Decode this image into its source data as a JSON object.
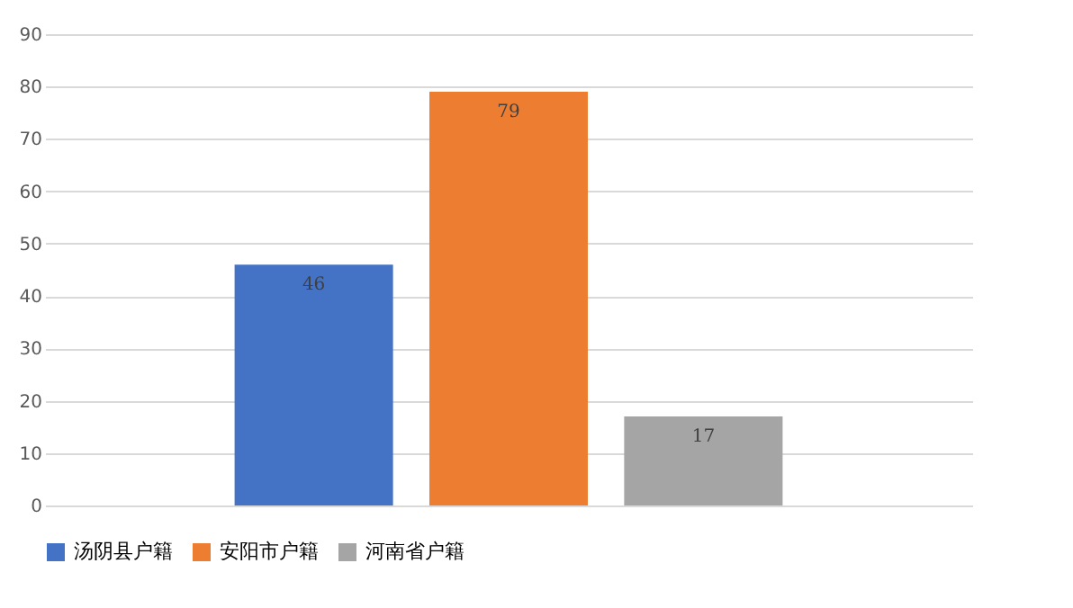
{
  "chart_data": {
    "type": "bar",
    "categories": [
      null
    ],
    "series": [
      {
        "name": "汤阴县户籍",
        "color": "#4472c4",
        "values": [
          46
        ]
      },
      {
        "name": "安阳市户籍",
        "color": "#ed7d31",
        "values": [
          79
        ]
      },
      {
        "name": "河南省户籍",
        "color": "#a5a5a5",
        "values": [
          17
        ]
      }
    ],
    "ylim": [
      0,
      90
    ],
    "yticks": [
      0,
      10,
      20,
      30,
      40,
      50,
      60,
      70,
      80,
      90
    ],
    "grid": "y",
    "legend": "bottom",
    "data_labels": true
  }
}
